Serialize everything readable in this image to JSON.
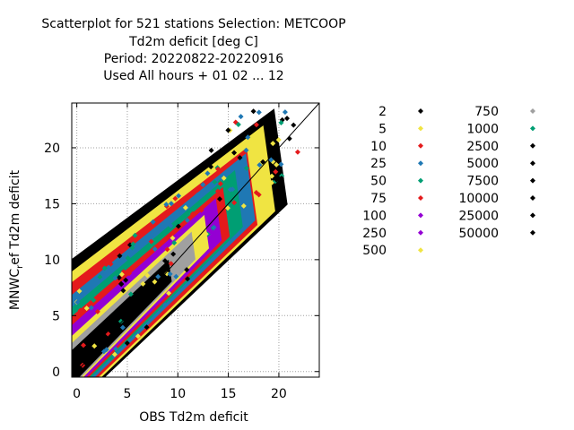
{
  "chart_data": {
    "type": "scatter",
    "title_lines": [
      "Scatterplot for  521 stations Selection: METCOOP",
      "Td2m deficit [deg C]",
      "Period: 20220822-20220916",
      "Used  All hours + 01 02 ... 12"
    ],
    "xlabel": "OBS Td2m deficit",
    "ylabel": "MNWC_ref Td2m deficit",
    "ylabel_display": [
      "MNWC",
      "r",
      "ef Td2m deficit"
    ],
    "xlim": [
      -0.5,
      24
    ],
    "ylim": [
      -0.5,
      24
    ],
    "xticks": [
      0,
      5,
      10,
      15,
      20
    ],
    "yticks": [
      0,
      5,
      10,
      15,
      20
    ],
    "grid": true,
    "diagonal_line": true,
    "legend_position": "right",
    "legend": [
      {
        "label": "2",
        "color": "#000000"
      },
      {
        "label": "5",
        "color": "#f0e442"
      },
      {
        "label": "10",
        "color": "#e41a1c"
      },
      {
        "label": "25",
        "color": "#1f78b4"
      },
      {
        "label": "50",
        "color": "#009e73"
      },
      {
        "label": "75",
        "color": "#e41a1c"
      },
      {
        "label": "100",
        "color": "#9400d3"
      },
      {
        "label": "250",
        "color": "#9400d3"
      },
      {
        "label": "500",
        "color": "#f0e442"
      },
      {
        "label": "750",
        "color": "#a0a0a0"
      },
      {
        "label": "1000",
        "color": "#009e73"
      },
      {
        "label": "2500",
        "color": "#000000"
      },
      {
        "label": "5000",
        "color": "#000000"
      },
      {
        "label": "7500",
        "color": "#000000"
      },
      {
        "label": "10000",
        "color": "#000000"
      },
      {
        "label": "25000",
        "color": "#000000"
      },
      {
        "label": "50000",
        "color": "#000000"
      }
    ],
    "density_bands": [
      {
        "count_class": "2",
        "color": "#000000",
        "halfwidth": 6.6,
        "ymax": 23.5
      },
      {
        "count_class": "5",
        "color": "#f0e442",
        "halfwidth": 5.9,
        "ymax": 22.0
      },
      {
        "count_class": "10",
        "color": "#e41a1c",
        "halfwidth": 5.3,
        "ymax": 20.0
      },
      {
        "count_class": "25",
        "color": "#1f78b4",
        "halfwidth": 4.6,
        "ymax": 19.5
      },
      {
        "count_class": "50",
        "color": "#009e73",
        "halfwidth": 3.9,
        "ymax": 18.0
      },
      {
        "count_class": "75",
        "color": "#e41a1c",
        "halfwidth": 3.4,
        "ymax": 16.5
      },
      {
        "count_class": "100",
        "color": "#9400d3",
        "halfwidth": 2.9,
        "ymax": 15.5
      },
      {
        "count_class": "500",
        "color": "#f0e442",
        "halfwidth": 2.3,
        "ymax": 14.0
      },
      {
        "count_class": "750",
        "color": "#a0a0a0",
        "halfwidth": 1.9,
        "ymax": 12.5
      },
      {
        "count_class": "2500",
        "color": "#000000",
        "halfwidth": 1.5,
        "ymax": 10.0
      }
    ]
  }
}
